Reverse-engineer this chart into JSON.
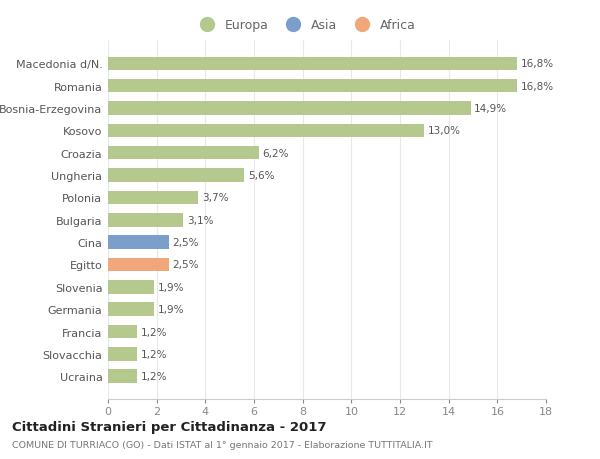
{
  "categories": [
    "Ucraina",
    "Slovacchia",
    "Francia",
    "Germania",
    "Slovenia",
    "Egitto",
    "Cina",
    "Bulgaria",
    "Polonia",
    "Ungheria",
    "Croazia",
    "Kosovo",
    "Bosnia-Erzegovina",
    "Romania",
    "Macedonia d/N."
  ],
  "values": [
    1.2,
    1.2,
    1.2,
    1.9,
    1.9,
    2.5,
    2.5,
    3.1,
    3.7,
    5.6,
    6.2,
    13.0,
    14.9,
    16.8,
    16.8
  ],
  "labels": [
    "1,2%",
    "1,2%",
    "1,2%",
    "1,9%",
    "1,9%",
    "2,5%",
    "2,5%",
    "3,1%",
    "3,7%",
    "5,6%",
    "6,2%",
    "13,0%",
    "14,9%",
    "16,8%",
    "16,8%"
  ],
  "colors": [
    "#b5c98e",
    "#b5c98e",
    "#b5c98e",
    "#b5c98e",
    "#b5c98e",
    "#f0a87a",
    "#7b9fca",
    "#b5c98e",
    "#b5c98e",
    "#b5c98e",
    "#b5c98e",
    "#b5c98e",
    "#b5c98e",
    "#b5c98e",
    "#b5c98e"
  ],
  "europa_color": "#b5c98e",
  "asia_color": "#7b9fca",
  "africa_color": "#f0a87a",
  "background_color": "#ffffff",
  "grid_color": "#e8e8e8",
  "title": "Cittadini Stranieri per Cittadinanza - 2017",
  "subtitle": "COMUNE DI TURRIACO (GO) - Dati ISTAT al 1° gennaio 2017 - Elaborazione TUTTITALIA.IT",
  "xlim": [
    0,
    18
  ],
  "xticks": [
    0,
    2,
    4,
    6,
    8,
    10,
    12,
    14,
    16,
    18
  ],
  "legend_labels": [
    "Europa",
    "Asia",
    "Africa"
  ],
  "bar_height": 0.6
}
